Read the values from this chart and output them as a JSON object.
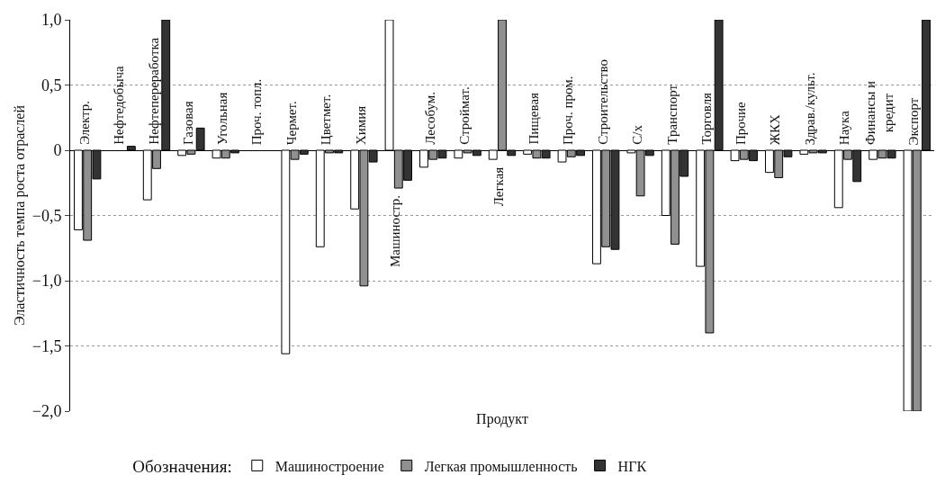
{
  "chart_data": {
    "type": "bar",
    "xlabel": "Продукт",
    "ylabel": "Эластичность темпа роста отраслей",
    "legend_title": "Обозначения:",
    "categories": [
      "Электр.",
      "Нефтедобыча",
      "Нефтепереработка",
      "Газовая",
      "Угольная",
      "Проч. топл.",
      "Чермет.",
      "Цветмет.",
      "Химия",
      "Машиностр.",
      "Лесобум.",
      "Строймат.",
      "Легкая",
      "Пищевая",
      "Проч. пром.",
      "Строительство",
      "С/х",
      "Транспорт",
      "Торговля",
      "Прочие",
      "ЖКХ",
      "Здрав./культ.",
      "Наука",
      "Финансы и кредит",
      "Экспорт"
    ],
    "series": [
      {
        "name": "Машиностроение",
        "color": "#ffffff",
        "values": [
          -0.61,
          null,
          -0.38,
          -0.04,
          -0.06,
          null,
          -1.56,
          -0.74,
          -0.45,
          1.0,
          -0.13,
          -0.06,
          -0.07,
          -0.03,
          -0.09,
          -0.87,
          -0.02,
          -0.5,
          -0.89,
          -0.08,
          -0.17,
          -0.03,
          -0.44,
          -0.07,
          -2.0
        ]
      },
      {
        "name": "Легкая промышленность",
        "color": "#909090",
        "values": [
          -0.69,
          null,
          -0.14,
          -0.03,
          -0.06,
          null,
          -0.07,
          -0.02,
          -1.04,
          -0.29,
          -0.07,
          -0.02,
          1.0,
          -0.06,
          -0.05,
          -0.74,
          -0.35,
          -0.72,
          -1.4,
          -0.07,
          -0.21,
          -0.02,
          -0.07,
          -0.06,
          -2.0
        ]
      },
      {
        "name": "НГК",
        "color": "#333333",
        "values": [
          -0.22,
          0.03,
          1.0,
          0.17,
          -0.02,
          null,
          -0.03,
          -0.02,
          -0.09,
          -0.23,
          -0.06,
          -0.04,
          -0.04,
          -0.06,
          -0.04,
          -0.76,
          -0.04,
          -0.2,
          1.0,
          -0.08,
          -0.05,
          -0.02,
          -0.24,
          -0.06,
          1.0
        ]
      }
    ],
    "ylim": [
      -2.0,
      1.0
    ],
    "yticks": [
      {
        "value": -2.0,
        "label": "−2,0"
      },
      {
        "value": -1.5,
        "label": "−1,5"
      },
      {
        "value": -1.0,
        "label": "−1,0"
      },
      {
        "value": -0.5,
        "label": "−0,5"
      },
      {
        "value": 0,
        "label": "0"
      },
      {
        "value": 0.5,
        "label": "0,5"
      },
      {
        "value": 1.0,
        "label": "1,0"
      }
    ],
    "grid": "y",
    "legend": "bottom"
  }
}
